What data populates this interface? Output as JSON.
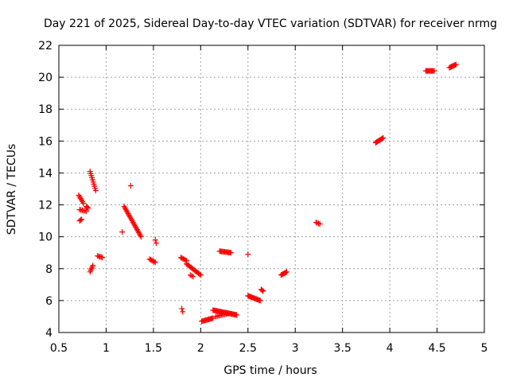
{
  "chart_data": {
    "type": "scatter",
    "title": "Day 221 of 2025, Sidereal Day-to-day VTEC variation (SDTVAR) for receiver nrmg",
    "xlabel": "GPS time / hours",
    "ylabel": "SDTVAR / TECUs",
    "xlim": [
      0.5,
      5
    ],
    "ylim": [
      4,
      22
    ],
    "xticks": [
      "0.5",
      "1",
      "1.5",
      "2",
      "2.5",
      "3",
      "3.5",
      "4",
      "4.5",
      "5"
    ],
    "yticks": [
      "4",
      "6",
      "8",
      "10",
      "12",
      "14",
      "16",
      "18",
      "20",
      "22"
    ],
    "grid": true,
    "marker": "+",
    "color": "#ff0000",
    "segments": [
      {
        "x0": 0.71,
        "x1": 0.76,
        "y0": 12.6,
        "y1": 12.1,
        "n": 6
      },
      {
        "x0": 0.72,
        "x1": 0.79,
        "y0": 11.7,
        "y1": 11.6,
        "n": 6
      },
      {
        "x0": 0.72,
        "x1": 0.74,
        "y0": 11.0,
        "y1": 11.1,
        "n": 3
      },
      {
        "x0": 0.79,
        "x1": 0.81,
        "y0": 11.9,
        "y1": 11.8,
        "n": 3
      },
      {
        "x0": 0.83,
        "x1": 0.89,
        "y0": 14.1,
        "y1": 12.9,
        "n": 10
      },
      {
        "x0": 0.83,
        "x1": 0.86,
        "y0": 7.8,
        "y1": 8.2,
        "n": 5
      },
      {
        "x0": 0.91,
        "x1": 0.96,
        "y0": 8.8,
        "y1": 8.7,
        "n": 5
      },
      {
        "x0": 1.17,
        "x1": 1.18,
        "y0": 10.3,
        "y1": 10.3,
        "n": 1
      },
      {
        "x0": 1.19,
        "x1": 1.37,
        "y0": 11.9,
        "y1": 10.0,
        "n": 22
      },
      {
        "x0": 1.26,
        "x1": 1.26,
        "y0": 13.2,
        "y1": 13.2,
        "n": 1
      },
      {
        "x0": 1.46,
        "x1": 1.52,
        "y0": 8.6,
        "y1": 8.4,
        "n": 6
      },
      {
        "x0": 1.52,
        "x1": 1.53,
        "y0": 9.8,
        "y1": 9.6,
        "n": 2
      },
      {
        "x0": 1.79,
        "x1": 1.85,
        "y0": 8.7,
        "y1": 8.5,
        "n": 6
      },
      {
        "x0": 1.85,
        "x1": 2.0,
        "y0": 8.3,
        "y1": 7.6,
        "n": 14
      },
      {
        "x0": 1.89,
        "x1": 1.92,
        "y0": 7.6,
        "y1": 7.5,
        "n": 3
      },
      {
        "x0": 1.8,
        "x1": 1.81,
        "y0": 5.5,
        "y1": 5.3,
        "n": 2
      },
      {
        "x0": 2.01,
        "x1": 2.13,
        "y0": 4.7,
        "y1": 4.9,
        "n": 12
      },
      {
        "x0": 2.13,
        "x1": 2.38,
        "y0": 5.4,
        "y1": 5.1,
        "n": 26
      },
      {
        "x0": 2.16,
        "x1": 2.3,
        "y0": 5.0,
        "y1": 5.2,
        "n": 10
      },
      {
        "x0": 2.2,
        "x1": 2.32,
        "y0": 9.1,
        "y1": 9.0,
        "n": 12
      },
      {
        "x0": 2.5,
        "x1": 2.51,
        "y0": 8.9,
        "y1": 8.9,
        "n": 1
      },
      {
        "x0": 2.5,
        "x1": 2.63,
        "y0": 6.3,
        "y1": 6.0,
        "n": 14
      },
      {
        "x0": 2.64,
        "x1": 2.66,
        "y0": 6.7,
        "y1": 6.6,
        "n": 3
      },
      {
        "x0": 2.85,
        "x1": 2.91,
        "y0": 7.6,
        "y1": 7.8,
        "n": 7
      },
      {
        "x0": 3.22,
        "x1": 3.26,
        "y0": 10.9,
        "y1": 10.8,
        "n": 4
      },
      {
        "x0": 3.85,
        "x1": 3.93,
        "y0": 15.9,
        "y1": 16.2,
        "n": 9
      },
      {
        "x0": 4.38,
        "x1": 4.47,
        "y0": 20.4,
        "y1": 20.4,
        "n": 10
      },
      {
        "x0": 4.63,
        "x1": 4.7,
        "y0": 20.6,
        "y1": 20.8,
        "n": 8
      }
    ]
  }
}
